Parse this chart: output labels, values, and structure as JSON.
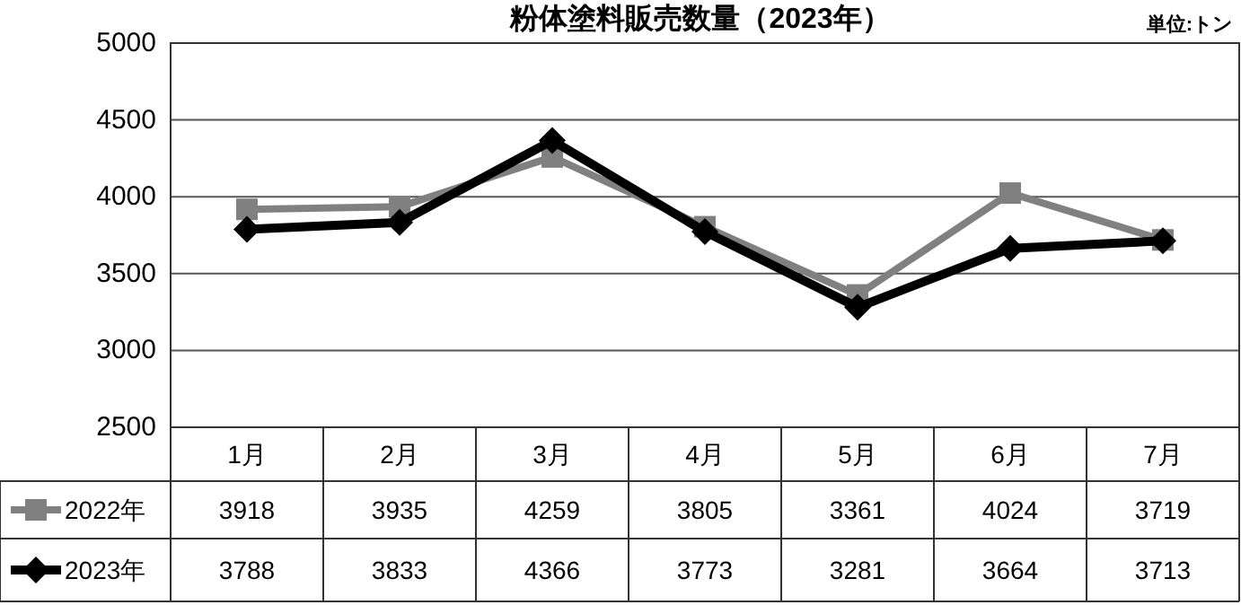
{
  "chart_data": {
    "type": "line",
    "title": "粉体塗料販売数量（2023年）",
    "annotations": [
      "単位:トン"
    ],
    "categories": [
      "1月",
      "2月",
      "3月",
      "4月",
      "5月",
      "6月",
      "7月"
    ],
    "series": [
      {
        "name": "2022年",
        "color": "#808080",
        "marker": "square",
        "values": [
          3918,
          3935,
          4259,
          3805,
          3361,
          4024,
          3719
        ]
      },
      {
        "name": "2023年",
        "color": "#000000",
        "marker": "diamond",
        "values": [
          3788,
          3833,
          4366,
          3773,
          3281,
          3664,
          3713
        ]
      }
    ],
    "ylim": [
      2500,
      5000
    ],
    "yticks": [
      2500,
      3000,
      3500,
      4000,
      4500,
      5000
    ],
    "grid": "y",
    "legend": "left",
    "data_labels": true,
    "line_style": "solid"
  }
}
